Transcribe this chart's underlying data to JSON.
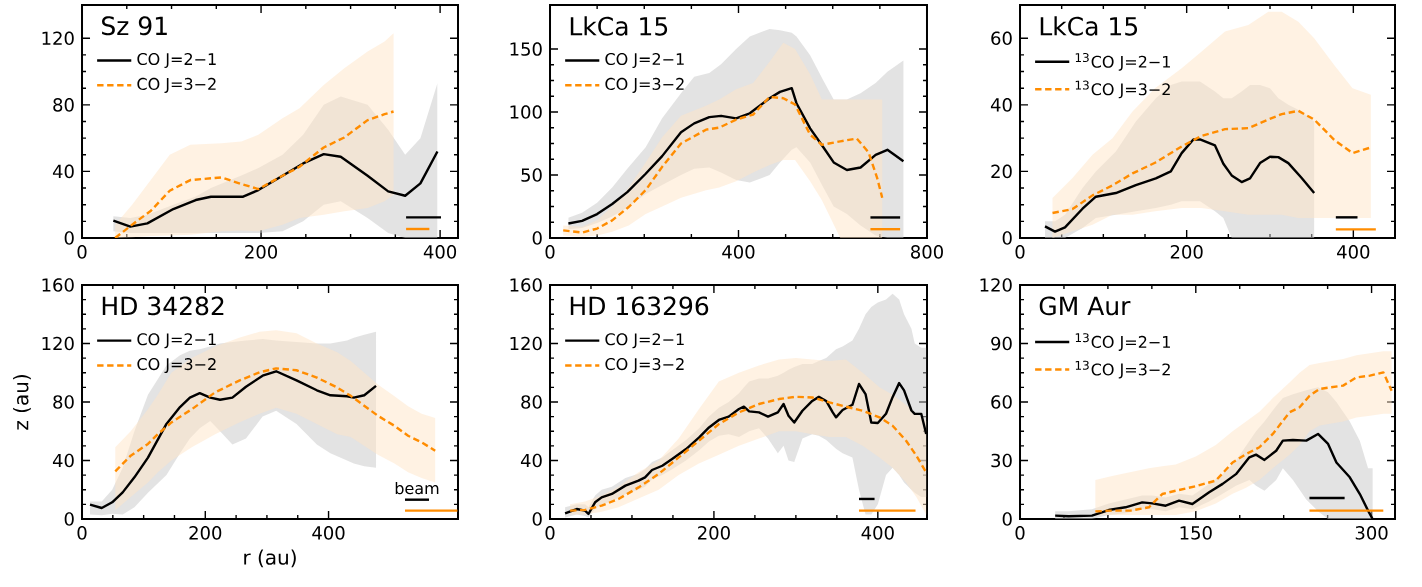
{
  "chart_data": [
    {
      "type": "line",
      "title": "Sz 91",
      "legend": "top left",
      "xlim": [
        0,
        420
      ],
      "ylim": [
        0,
        140
      ],
      "xticks": [
        0,
        200,
        400
      ],
      "yticks": [
        0,
        40,
        80,
        120
      ],
      "series": [
        {
          "name": "CO J=2−1",
          "color": "#000000",
          "line_style": "solid",
          "x": [
            35,
            54,
            73,
            102,
            127,
            144,
            180,
            197,
            224,
            247,
            270,
            289,
            319,
            342,
            361,
            378,
            397
          ],
          "values": [
            10.4,
            6.8,
            8.8,
            17.4,
            22.8,
            24.8,
            24.8,
            28.8,
            37.4,
            44.8,
            50.4,
            48.8,
            37.4,
            28,
            25.4,
            32.8,
            52
          ],
          "lower": [
            4,
            3,
            3,
            3,
            3,
            3,
            3,
            3,
            4,
            10,
            20,
            22,
            12,
            3,
            0,
            0,
            0
          ],
          "upper": [
            13,
            12,
            14,
            20,
            25,
            30,
            38,
            42,
            50,
            62,
            80,
            85,
            80,
            65,
            50,
            60,
            93
          ]
        },
        {
          "name": "CO J=3−2",
          "color": "#ff8c00",
          "line_style": "dashed",
          "x": [
            37,
            56,
            77,
            98,
            121,
            156,
            178,
            197,
            224,
            243,
            270,
            293,
            319,
            338,
            348
          ],
          "values": [
            0,
            8,
            16.4,
            28.4,
            34.8,
            36.4,
            32.4,
            29.4,
            37.4,
            42.8,
            54.4,
            60.4,
            70.8,
            74.4,
            76
          ],
          "lower": [
            0,
            0.5,
            1.2,
            1.5,
            2,
            4,
            4.5,
            4,
            8,
            12,
            14,
            16,
            18,
            22,
            26
          ],
          "upper": [
            8,
            20,
            35,
            50,
            56,
            57,
            58,
            62,
            72,
            78,
            92,
            102,
            112,
            118,
            123
          ]
        },
        {
          "color": "#000000",
          "line_style": "solid",
          "x": [
            362,
            401
          ],
          "values": [
            12.4,
            12.4
          ]
        },
        {
          "color": "#ff8c00",
          "line_style": "solid",
          "x": [
            362,
            388
          ],
          "values": [
            5.4,
            5.4
          ]
        }
      ]
    },
    {
      "type": "line",
      "title": "LkCa 15",
      "legend": "top left",
      "xlim": [
        0,
        800
      ],
      "ylim": [
        0,
        185
      ],
      "xticks": [
        0,
        400,
        800
      ],
      "yticks": [
        0,
        50,
        100,
        150
      ],
      "series": [
        {
          "name": "CO J=2−1",
          "color": "#000000",
          "line_style": "solid",
          "x": [
            39,
            68,
            100,
            132,
            164,
            203,
            238,
            278,
            306,
            338,
            363,
            395,
            424,
            466,
            488,
            513,
            523,
            552,
            580,
            602,
            630,
            659,
            691,
            716,
            750
          ],
          "values": [
            11.5,
            13.6,
            19,
            27,
            36.4,
            51,
            65,
            84,
            91,
            96,
            97,
            95,
            99,
            111,
            116,
            119,
            107,
            87,
            72,
            60,
            54,
            56,
            66,
            70,
            61
          ],
          "lower": [
            7,
            8,
            12,
            17,
            24,
            35,
            42,
            50,
            55,
            56,
            52,
            46,
            44,
            50,
            60,
            70,
            72,
            60,
            40,
            25,
            19,
            10,
            2,
            0,
            0
          ],
          "upper": [
            16,
            20,
            28,
            40,
            55,
            72,
            95,
            115,
            128,
            131,
            138,
            150,
            160,
            166,
            165,
            163,
            160,
            145,
            125,
            110,
            110,
            115,
            123,
            132,
            141
          ]
        },
        {
          "name": "CO J=3−2",
          "color": "#ff8c00",
          "line_style": "dashed",
          "x": [
            28,
            68,
            100,
            132,
            167,
            203,
            238,
            278,
            331,
            359,
            395,
            431,
            466,
            495,
            520,
            552,
            577,
            616,
            651,
            676,
            694,
            705
          ],
          "values": [
            6,
            4.3,
            7.5,
            14,
            24.6,
            38,
            56.5,
            75,
            86,
            87.6,
            94,
            98,
            112,
            111,
            106,
            82,
            74,
            76.7,
            79,
            68,
            48,
            32
          ],
          "lower": [
            2,
            1,
            2,
            5,
            10,
            19,
            25,
            32,
            38,
            40,
            45,
            52,
            58,
            62,
            62,
            45,
            30,
            0,
            0,
            0,
            0,
            0
          ],
          "upper": [
            10,
            9,
            14,
            25,
            40,
            60,
            80,
            97,
            105,
            110,
            118,
            123,
            140,
            155,
            150,
            130,
            110,
            110,
            110,
            110,
            110,
            110
          ]
        },
        {
          "color": "#000000",
          "line_style": "solid",
          "x": [
            680,
            743
          ],
          "values": [
            16.3,
            16.3
          ]
        },
        {
          "color": "#ff8c00",
          "line_style": "solid",
          "x": [
            680,
            743
          ],
          "values": [
            7,
            7
          ]
        }
      ]
    },
    {
      "type": "line",
      "title": "LkCa 15",
      "legend": "top left",
      "xlim": [
        0,
        450
      ],
      "ylim": [
        0,
        70
      ],
      "xticks": [
        0,
        200,
        400
      ],
      "yticks": [
        0,
        20,
        40,
        60
      ],
      "series": [
        {
          "name": "$^{13}$CO J=2−1",
          "color": "#000000",
          "line_style": "solid",
          "x": [
            30,
            42,
            54,
            75,
            91,
            115,
            139,
            163,
            181,
            194,
            208,
            216,
            234,
            244,
            254,
            266,
            276,
            288,
            300,
            310,
            322,
            338,
            353
          ],
          "values": [
            3.5,
            1.9,
            3.2,
            8.8,
            12.4,
            13.5,
            15.9,
            17.9,
            20,
            25.5,
            29.6,
            29.6,
            27.8,
            22.3,
            18.8,
            16.8,
            17.9,
            22.5,
            24.4,
            24.3,
            22.5,
            18,
            13.5
          ],
          "lower": [
            0,
            0,
            0,
            3,
            6,
            7,
            8,
            9,
            10,
            11,
            11,
            11,
            8,
            6,
            0,
            0,
            0,
            0,
            0,
            0,
            0,
            0,
            0
          ],
          "upper": [
            5,
            5,
            7,
            15,
            20,
            26,
            35,
            42,
            46,
            47,
            47,
            47,
            44,
            42,
            42,
            44,
            46,
            46,
            45,
            42,
            40,
            38,
            35
          ]
        },
        {
          "name": "$^{13}$CO J=3−2",
          "color": "#ff8c00",
          "line_style": "dashed",
          "x": [
            39,
            63,
            87,
            111,
            135,
            162,
            194,
            218,
            246,
            274,
            298,
            314,
            334,
            353,
            377,
            399,
            421
          ],
          "values": [
            7.5,
            8.7,
            12.8,
            15.8,
            19.4,
            22.6,
            27.5,
            30.7,
            32.7,
            33,
            35.6,
            37.2,
            38.2,
            35.6,
            29.5,
            25.5,
            27.2
          ],
          "lower": [
            0,
            2,
            4,
            7,
            7,
            8,
            9,
            9,
            8,
            7,
            7,
            7,
            6,
            6,
            6,
            6,
            6
          ],
          "upper": [
            12,
            18,
            25,
            30,
            38,
            45,
            51,
            56,
            62,
            64,
            68,
            68,
            65,
            60,
            52,
            45,
            43
          ]
        },
        {
          "color": "#000000",
          "line_style": "solid",
          "x": [
            379,
            405
          ],
          "values": [
            6.2,
            6.2
          ]
        },
        {
          "color": "#ff8c00",
          "line_style": "solid",
          "x": [
            379,
            427
          ],
          "values": [
            2.6,
            2.6
          ]
        }
      ]
    },
    {
      "type": "line",
      "title": "HD 34282",
      "legend": "top left",
      "xlabel": "r (au)",
      "ylabel": "z (au)",
      "xlim": [
        0,
        610
      ],
      "ylim": [
        0,
        160
      ],
      "xticks": [
        0,
        200,
        400
      ],
      "yticks": [
        0,
        40,
        80,
        120,
        160
      ],
      "annotations": [
        "beam"
      ],
      "series": [
        {
          "name": "CO J=2−1",
          "color": "#000000",
          "line_style": "solid",
          "x": [
            13,
            32,
            49,
            66,
            85,
            107,
            137,
            159,
            175,
            191,
            208,
            224,
            244,
            266,
            293,
            315,
            348,
            381,
            403,
            430,
            441,
            458,
            477
          ],
          "values": [
            9.8,
            7.5,
            11.4,
            18.2,
            28.5,
            42,
            65,
            76.5,
            83,
            86,
            83,
            81.5,
            83,
            90.4,
            98,
            101,
            94.8,
            88,
            84.6,
            83.9,
            83,
            84.6,
            91
          ],
          "lower": [
            3,
            2.5,
            3.5,
            3,
            8,
            18,
            30,
            45,
            55,
            62,
            67,
            60,
            51,
            55,
            70,
            74,
            65,
            51,
            45,
            40,
            38,
            36,
            35
          ],
          "upper": [
            12,
            12,
            20,
            35,
            60,
            85,
            105,
            112,
            115,
            116,
            118,
            120,
            121,
            122,
            123,
            122,
            121,
            120,
            120,
            122,
            124,
            126,
            128
          ]
        },
        {
          "name": "CO J=3−2",
          "color": "#ff8c00",
          "line_style": "dashed",
          "x": [
            54,
            79,
            107,
            123,
            145,
            178,
            216,
            255,
            288,
            315,
            348,
            381,
            414,
            436,
            458,
            480,
            507,
            529,
            551,
            573
          ],
          "values": [
            32.6,
            43.3,
            51.3,
            58,
            66,
            75,
            86.6,
            94.6,
            100.3,
            103,
            101.7,
            96.7,
            89.9,
            84.2,
            77.4,
            70.6,
            63.7,
            56.9,
            52.4,
            46.7
          ],
          "lower": [
            6,
            15,
            25,
            32,
            40,
            49,
            58,
            66,
            72,
            76,
            72,
            65,
            58,
            56,
            50,
            44,
            38,
            32,
            28,
            25
          ],
          "upper": [
            49,
            60,
            75,
            85,
            100,
            110,
            118,
            124,
            128,
            129,
            127,
            120,
            114,
            108,
            100,
            92,
            84,
            77,
            72,
            69
          ]
        },
        {
          "color": "#000000",
          "line_style": "solid",
          "x": [
            524,
            563
          ],
          "values": [
            13.2,
            13.2
          ]
        },
        {
          "color": "#ff8c00",
          "line_style": "solid",
          "x": [
            524,
            609
          ],
          "values": [
            5.7,
            5.7
          ]
        }
      ]
    },
    {
      "type": "line",
      "title": "HD 163296",
      "legend": "top left",
      "xlim": [
        0,
        460
      ],
      "ylim": [
        0,
        160
      ],
      "xticks": [
        0,
        200,
        400
      ],
      "yticks": [
        0,
        40,
        80,
        120,
        160
      ],
      "series": [
        {
          "name": "CO J=2−1",
          "color": "#000000",
          "line_style": "solid",
          "x": [
            18.4,
            32.6,
            42.8,
            46.9,
            55,
            63,
            75.5,
            92,
            108,
            116,
            124.5,
            137,
            149,
            166,
            182,
            194,
            206,
            218,
            230.5,
            236.6,
            243,
            255,
            266,
            278,
            285,
            291,
            298,
            308,
            320,
            328,
            337,
            345,
            349,
            357,
            369,
            377,
            385,
            392,
            400,
            410,
            418,
            426,
            432,
            441,
            445,
            453,
            459
          ],
          "values": [
            3.9,
            6.8,
            5.7,
            3.4,
            11.4,
            14.8,
            17.1,
            22.8,
            26.2,
            28.5,
            33.5,
            36.4,
            41,
            47.8,
            55.8,
            62.6,
            67.7,
            70,
            75.2,
            76.8,
            73.6,
            72.9,
            70,
            72.9,
            78.6,
            70.6,
            66,
            74,
            80.7,
            83.5,
            80.7,
            72.9,
            69.5,
            74.5,
            78.1,
            92.3,
            85.4,
            66,
            65.6,
            72,
            83.3,
            92.9,
            87.9,
            74.2,
            71.9,
            71.9,
            58.1
          ],
          "lower": [
            1,
            3,
            2,
            1,
            7,
            10,
            12,
            17,
            20,
            22,
            27,
            30,
            34,
            40,
            47,
            53,
            57,
            58,
            56,
            58,
            60,
            62,
            55,
            45,
            50,
            40,
            39,
            55,
            58,
            57,
            54,
            50,
            48,
            45,
            42,
            20,
            3,
            3,
            10,
            30,
            35,
            30,
            25,
            20,
            18,
            15,
            15
          ],
          "upper": [
            8,
            10,
            10,
            8,
            16,
            20,
            22,
            28,
            31,
            34,
            39,
            42,
            47,
            54,
            62,
            70,
            76,
            80,
            86,
            90,
            94,
            96,
            96,
            98,
            100,
            102,
            104,
            106,
            106,
            108,
            110,
            114,
            116,
            118,
            122,
            130,
            140,
            145,
            148,
            150,
            154,
            150,
            140,
            130,
            120,
            117,
            117
          ]
        },
        {
          "name": "CO J=3−2",
          "color": "#ff8c00",
          "line_style": "dashed",
          "x": [
            24.5,
            42.8,
            63,
            83.6,
            108,
            132.6,
            157,
            181.6,
            206,
            230.5,
            255,
            279.5,
            300,
            320,
            341,
            361,
            381.5,
            402,
            418,
            434.5,
            447,
            459
          ],
          "values": [
            5.7,
            6.2,
            9.1,
            13.7,
            21.6,
            30.8,
            42.1,
            53.5,
            64.9,
            72.9,
            78.6,
            82,
            83.6,
            83.1,
            79.7,
            76.8,
            74,
            69.5,
            63.8,
            53.5,
            43.3,
            31.9
          ],
          "lower": [
            3,
            3,
            5,
            8,
            14,
            20,
            30,
            38,
            44,
            50,
            55,
            60,
            60,
            58,
            56,
            56,
            50,
            42,
            35,
            25,
            15,
            3
          ],
          "upper": [
            10,
            12,
            16,
            22,
            32,
            40,
            55,
            75,
            94,
            100,
            105,
            109,
            110,
            109,
            108,
            109,
            100,
            90,
            85,
            78,
            72,
            67
          ]
        },
        {
          "color": "#000000",
          "line_style": "solid",
          "x": [
            377,
            396
          ],
          "values": [
            13.7,
            13.7
          ]
        },
        {
          "color": "#ff8c00",
          "line_style": "solid",
          "x": [
            377,
            446
          ],
          "values": [
            5.7,
            5.7
          ]
        }
      ]
    },
    {
      "type": "line",
      "title": "GM Aur",
      "legend": "top left",
      "xlim": [
        0,
        320
      ],
      "ylim": [
        0,
        120
      ],
      "xticks": [
        0,
        150,
        300
      ],
      "yticks": [
        0,
        30,
        60,
        90,
        120
      ],
      "series": [
        {
          "name": "$^{13}$CO J=2−1",
          "color": "#000000",
          "line_style": "solid",
          "x": [
            30,
            41.4,
            61.4,
            75.7,
            90,
            104.3,
            112.9,
            124.3,
            135.7,
            147.1,
            161.4,
            172.9,
            184.3,
            195.7,
            201.4,
            208.6,
            218.6,
            224.3,
            232.9,
            244.3,
            254.3,
            262.9,
            270,
            281.4,
            290,
            297,
            300.9
          ],
          "values": [
            1.7,
            1.4,
            1.7,
            4.6,
            6,
            8.5,
            8,
            6.8,
            9.4,
            7.7,
            13.7,
            18,
            23,
            31.6,
            33,
            30.3,
            35,
            40.2,
            40.5,
            40.2,
            43.6,
            38.5,
            29,
            21.4,
            12.8,
            4.3,
            0
          ],
          "lower": [
            0,
            0,
            0,
            2,
            3,
            5,
            5,
            4,
            6,
            5,
            9,
            13,
            17,
            20,
            17,
            14.5,
            20,
            26,
            20,
            10,
            4,
            0,
            0,
            0,
            0,
            0,
            0
          ],
          "upper": [
            4,
            4,
            5,
            8,
            10,
            12,
            12,
            11,
            13,
            12,
            18,
            23,
            30,
            40,
            45,
            50,
            58,
            62,
            64,
            66,
            67.5,
            65,
            60,
            50,
            40,
            26,
            26
          ]
        },
        {
          "name": "$^{13}$CO J=3−2",
          "color": "#ff8c00",
          "line_style": "dashed",
          "x": [
            64.3,
            78.6,
            94.3,
            110,
            121.4,
            132.9,
            150,
            167.1,
            181.4,
            192.9,
            204.3,
            215.7,
            230,
            238.6,
            247.1,
            255.7,
            275.7,
            287.1,
            298.6,
            310,
            317.1
          ],
          "values": [
            3.9,
            4.3,
            4.3,
            6,
            12.8,
            14.5,
            16.8,
            19.7,
            29,
            33.3,
            36.8,
            43.6,
            54.7,
            57.3,
            63.2,
            66.7,
            68.4,
            72.6,
            73.5,
            75.2,
            65.8
          ],
          "lower": [
            2,
            2,
            2,
            2,
            2,
            2,
            4,
            8,
            13,
            16,
            20,
            26,
            33,
            38,
            45,
            48,
            50,
            52,
            53,
            54,
            54
          ],
          "upper": [
            20,
            22,
            24,
            26,
            27,
            28,
            32,
            38,
            45,
            50,
            55,
            62,
            70,
            75,
            79,
            80,
            82,
            84,
            85,
            86,
            86
          ]
        },
        {
          "color": "#000000",
          "line_style": "solid",
          "x": [
            247,
            277
          ],
          "values": [
            10.8,
            10.8
          ]
        },
        {
          "color": "#ff8c00",
          "line_style": "solid",
          "x": [
            247,
            310
          ],
          "values": [
            4.3,
            4.3
          ]
        }
      ]
    }
  ]
}
